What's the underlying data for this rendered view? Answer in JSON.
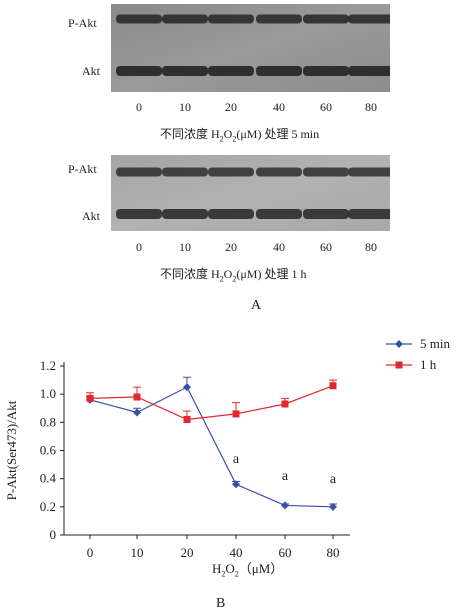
{
  "panel_a": {
    "label": "A",
    "blot1": {
      "row_labels": [
        "P-Akt",
        "Akt"
      ],
      "lanes": [
        "0",
        "10",
        "20",
        "40",
        "60",
        "80"
      ],
      "caption_pre": "不同浓度 H",
      "caption_sub1": "2",
      "caption_mid": "O",
      "caption_sub2": "2",
      "caption_post": "(μM) 处理 5 min"
    },
    "blot2": {
      "row_labels": [
        "P-Akt",
        "Akt"
      ],
      "lanes": [
        "0",
        "10",
        "20",
        "40",
        "60",
        "80"
      ],
      "caption_pre": "不同浓度 H",
      "caption_sub1": "2",
      "caption_mid": "O",
      "caption_sub2": "2",
      "caption_post": "(μM) 处理 1 h"
    }
  },
  "panel_b": {
    "label": "B",
    "significance_marker": "a"
  },
  "chart_data": {
    "type": "line",
    "x": [
      0,
      10,
      20,
      40,
      60,
      80
    ],
    "xticks": [
      "0",
      "10",
      "20",
      "40",
      "60",
      "80"
    ],
    "yticks": [
      "0",
      "0.2",
      "0.4",
      "0.6",
      "0.8",
      "1.0",
      "1.2"
    ],
    "ylim": [
      0,
      1.2
    ],
    "ylabel": "P-Akt(Ser473)/Akt",
    "xlabel_pre": "H",
    "xlabel_sub1": "2",
    "xlabel_mid": "O",
    "xlabel_sub2": "2",
    "xlabel_post": "（μM）",
    "legend_position": "top-right",
    "series": [
      {
        "name": "5 min",
        "color": "#3a4fa8",
        "marker": "diamond",
        "values": [
          0.96,
          0.87,
          1.05,
          0.36,
          0.21,
          0.2
        ],
        "errors": [
          0.02,
          0.03,
          0.07,
          0.02,
          0.01,
          0.02
        ]
      },
      {
        "name": "1 h",
        "color": "#e0282e",
        "marker": "square",
        "values": [
          0.97,
          0.98,
          0.82,
          0.86,
          0.93,
          1.06
        ],
        "errors": [
          0.04,
          0.07,
          0.06,
          0.08,
          0.04,
          0.04
        ]
      }
    ],
    "annotations": [
      {
        "x": 40,
        "y": 0.51,
        "text": "a"
      },
      {
        "x": 60,
        "y": 0.39,
        "text": "a"
      },
      {
        "x": 80,
        "y": 0.37,
        "text": "a"
      }
    ]
  }
}
